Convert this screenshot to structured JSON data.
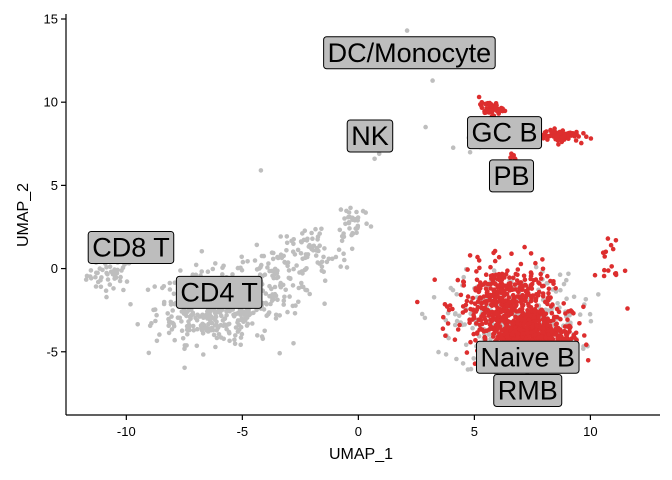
{
  "chart_data": {
    "type": "scatter",
    "title": "",
    "xlabel": "UMAP_1",
    "ylabel": "UMAP_2",
    "xlim": [
      -12.6,
      13.0
    ],
    "ylim": [
      -8.8,
      15.3
    ],
    "x_ticks": [
      -10,
      -5,
      0,
      5,
      10
    ],
    "x_tick_labels": [
      "-10",
      "-5",
      "0",
      "5",
      "10"
    ],
    "y_ticks": [
      -5,
      0,
      5,
      10,
      15
    ],
    "y_tick_labels": [
      "-5",
      "0",
      "5",
      "10",
      "15"
    ],
    "grid": false,
    "legend": "none",
    "colors": {
      "highlighted": "#dd2e2e",
      "other": "#bebebe"
    },
    "cluster_labels": [
      {
        "text": "DC/Monocyte",
        "x": 2.2,
        "y": 13.0
      },
      {
        "text": "NK",
        "x": 0.5,
        "y": 8.0
      },
      {
        "text": "GC B",
        "x": 6.3,
        "y": 8.2
      },
      {
        "text": "PB",
        "x": 6.6,
        "y": 5.6
      },
      {
        "text": "CD8 T",
        "x": -9.8,
        "y": 1.3
      },
      {
        "text": "CD4 T",
        "x": -6.0,
        "y": -1.4
      },
      {
        "text": "Naive B",
        "x": 7.3,
        "y": -5.3
      },
      {
        "text": "RMB",
        "x": 7.3,
        "y": -7.3
      }
    ],
    "clusters": [
      {
        "group": "CD8 T",
        "color": "other",
        "cx": -10.7,
        "cy": -0.4,
        "sx": 0.5,
        "sy": 0.5,
        "n": 45
      },
      {
        "group": "CD4 T",
        "color": "other",
        "cx": -6.2,
        "cy": -2.4,
        "sx": 1.25,
        "sy": 1.05,
        "n": 420
      },
      {
        "group": "CD4 T",
        "color": "other",
        "cx": -3.6,
        "cy": -0.6,
        "sx": 0.9,
        "sy": 0.9,
        "n": 110
      },
      {
        "group": "CD4 T",
        "color": "other",
        "cx": -2.0,
        "cy": 0.9,
        "sx": 0.8,
        "sy": 0.9,
        "n": 60
      },
      {
        "group": "NK",
        "color": "other",
        "cx": -0.2,
        "cy": 2.9,
        "sx": 0.35,
        "sy": 0.6,
        "n": 35
      },
      {
        "group": "B",
        "color": "other",
        "cx": 6.8,
        "cy": -3.3,
        "sx": 1.35,
        "sy": 1.45,
        "n": 380
      },
      {
        "group": "B",
        "color": "highlighted",
        "cx": 6.3,
        "cy": -2.2,
        "sx": 1.0,
        "sy": 1.2,
        "n": 480
      },
      {
        "group": "B",
        "color": "highlighted",
        "cx": 7.5,
        "cy": -4.0,
        "sx": 0.85,
        "sy": 0.7,
        "n": 520
      },
      {
        "group": "GC B",
        "color": "highlighted",
        "cx": 5.7,
        "cy": 9.6,
        "sx": 0.25,
        "sy": 0.2,
        "n": 55
      },
      {
        "group": "GC B",
        "color": "highlighted",
        "cx": 8.7,
        "cy": 8.0,
        "sx": 0.4,
        "sy": 0.18,
        "n": 80
      },
      {
        "group": "GC B",
        "color": "other",
        "cx": 5.5,
        "cy": 7.7,
        "sx": 0.5,
        "sy": 0.25,
        "n": 20
      },
      {
        "group": "PB",
        "color": "highlighted",
        "cx": 6.6,
        "cy": 6.3,
        "sx": 0.15,
        "sy": 0.5,
        "n": 10
      },
      {
        "group": "outliers",
        "color": "highlighted",
        "cx": 10.9,
        "cy": 0.4,
        "sx": 0.35,
        "sy": 0.9,
        "n": 14
      }
    ],
    "points": [
      {
        "x": 2.1,
        "y": 14.3,
        "color": "other"
      },
      {
        "x": 3.2,
        "y": 11.3,
        "color": "other"
      },
      {
        "x": 2.9,
        "y": 8.5,
        "color": "other"
      },
      {
        "x": 0.9,
        "y": 6.9,
        "color": "other"
      },
      {
        "x": 0.7,
        "y": 6.6,
        "color": "other"
      },
      {
        "x": -4.2,
        "y": 5.9,
        "color": "other"
      },
      {
        "x": -3.1,
        "y": 1.1,
        "color": "other"
      },
      {
        "x": 9.7,
        "y": -2.3,
        "color": "highlighted"
      },
      {
        "x": 11.6,
        "y": -2.4,
        "color": "highlighted"
      },
      {
        "x": 11.1,
        "y": 1.7,
        "color": "highlighted"
      },
      {
        "x": 10.6,
        "y": -0.1,
        "color": "highlighted"
      }
    ]
  }
}
